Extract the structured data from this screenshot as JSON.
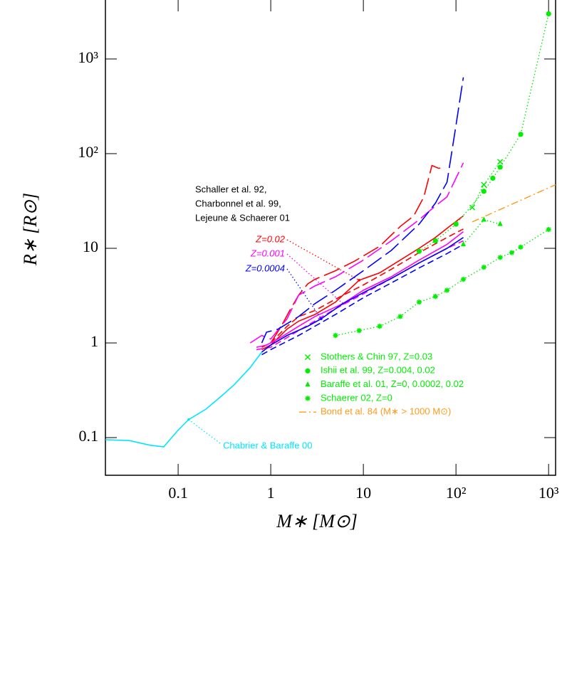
{
  "chart_data": {
    "type": "line",
    "x_label": "M∗ [M⊙]",
    "y_label": "R∗ [R⊙]",
    "log_x": true,
    "log_y": true,
    "xlim": [
      0.0164,
      1190
    ],
    "ylim": [
      0.04,
      4200
    ],
    "xticks": [
      0.1,
      1,
      10,
      {
        "value": 100,
        "label": "10²"
      },
      {
        "value": 1000,
        "label": "10³"
      }
    ],
    "yticks": [
      0.1,
      1,
      10,
      {
        "value": 100,
        "label": "10²"
      },
      {
        "value": 1000,
        "label": "10³"
      }
    ],
    "annotation": [
      "Schaller et al. 92,",
      "Charbonnel et al. 99,",
      "Lejeune & Schaerer 01"
    ],
    "models": [
      {
        "label": "Z=0.02",
        "color": "#ff0000",
        "lines": [
          {
            "dash": "solid",
            "x": [
              0.8,
              1,
              1.5,
              2,
              3,
              5,
              9,
              15,
              25,
              40,
              60,
              85,
              120
            ],
            "values": [
              0.85,
              0.95,
              1.4,
              1.7,
              2.0,
              2.7,
              4.6,
              5.5,
              7.5,
              10,
              13,
              17,
              22
            ]
          },
          {
            "dash": "short",
            "x": [
              0.8,
              1,
              1.5,
              2,
              3,
              5,
              10,
              20,
              40,
              80,
              120
            ],
            "values": [
              0.9,
              1.0,
              1.5,
              1.9,
              2.2,
              2.9,
              4.1,
              6,
              9,
              13,
              16
            ]
          },
          {
            "dash": "long",
            "x": [
              1,
              1.3,
              1.6,
              2,
              2.5,
              3,
              5,
              8,
              15,
              25,
              35,
              45,
              55,
              65,
              75
            ],
            "values": [
              1.0,
              1.5,
              2.2,
              3.2,
              4.2,
              4.7,
              5.8,
              7.3,
              10.5,
              17,
              22,
              35,
              75,
              70,
              72
            ]
          }
        ]
      },
      {
        "label": "Z=0.001",
        "color": "#ff00ff",
        "lines": [
          {
            "dash": "solid",
            "x": [
              0.7,
              0.9,
              1.2,
              2,
              3,
              6,
              10,
              20,
              40,
              80,
              120
            ],
            "values": [
              0.9,
              0.95,
              1.1,
              1.5,
              1.9,
              2.6,
              3.6,
              5,
              7.5,
              11,
              15
            ]
          },
          {
            "dash": "short",
            "x": [
              0.7,
              1,
              2,
              5,
              10,
              20,
              40,
              80,
              120
            ],
            "values": [
              0.85,
              0.9,
              1.35,
              2.3,
              3.3,
              4.8,
              7,
              10,
              12
            ]
          },
          {
            "dash": "long",
            "x": [
              0.6,
              0.8,
              1,
              1.5,
              2,
              3,
              5,
              10,
              20,
              40,
              60,
              80,
              120
            ],
            "values": [
              1.0,
              1.2,
              1.1,
              1.8,
              3.2,
              4.0,
              5,
              7.5,
              12,
              20,
              28,
              35,
              80
            ]
          }
        ]
      },
      {
        "label": "Z=0.0004",
        "color": "#0000ff",
        "lines": [
          {
            "dash": "solid",
            "x": [
              0.8,
              1,
              1.5,
              2.5,
              3.5,
              6,
              10,
              20,
              40,
              80,
              120
            ],
            "values": [
              0.8,
              0.95,
              1.2,
              1.5,
              1.8,
              2.6,
              3.4,
              4.8,
              7,
              10,
              13
            ]
          },
          {
            "dash": "short",
            "x": [
              0.8,
              1,
              2,
              5,
              10,
              20,
              40,
              80,
              120
            ],
            "values": [
              0.75,
              0.85,
              1.2,
              2.0,
              3.0,
              4.3,
              6.2,
              8.8,
              11
            ]
          },
          {
            "dash": "long",
            "x": [
              0.8,
              0.9,
              1.2,
              2,
              3,
              5,
              10,
              20,
              40,
              60,
              80,
              100,
              120
            ],
            "values": [
              1.0,
              1.3,
              1.4,
              1.9,
              2.6,
              3.6,
              5.8,
              9.5,
              18,
              30,
              50,
              200,
              640
            ]
          }
        ]
      },
      {
        "label": "Chabrier & Baraffe 00",
        "color": "#00e5ff",
        "lines": [
          {
            "dash": "solid",
            "x": [
              0.0164,
              0.03,
              0.05,
              0.07,
              0.1,
              0.13,
              0.2,
              0.3,
              0.4,
              0.6,
              0.8
            ],
            "values": [
              0.095,
              0.093,
              0.083,
              0.08,
              0.12,
              0.155,
              0.2,
              0.28,
              0.36,
              0.55,
              0.8
            ]
          }
        ]
      }
    ],
    "series": [
      {
        "name": "Stothers & Chin 97, Z=0.03",
        "color": "#00ee00",
        "marker": "cross",
        "line": "dotted",
        "x": [
          150,
          200,
          300
        ],
        "values": [
          27,
          47,
          82
        ]
      },
      {
        "name": "Ishii et al. 99, Z=0.004, 0.02",
        "color": "#00ee00",
        "marker": "circle",
        "line": "dotted",
        "x": [
          40,
          60,
          100,
          200,
          250,
          300,
          500,
          1000
        ],
        "values": [
          9.3,
          12,
          18,
          40,
          55,
          72,
          160,
          3000
        ]
      },
      {
        "name": "Baraffe et al. 01, Z=0, 0.0002, 0.02",
        "color": "#00ee00",
        "marker": "triangle",
        "line": "dotted",
        "x": [
          120,
          200,
          300
        ],
        "values": [
          11,
          20,
          18
        ]
      },
      {
        "name": "Schaerer 02, Z=0",
        "color": "#00ee00",
        "marker": "star",
        "line": "dotted",
        "x": [
          5,
          9,
          15,
          25,
          40,
          60,
          80,
          120,
          200,
          300,
          400,
          500,
          1000
        ],
        "values": [
          1.2,
          1.35,
          1.5,
          1.9,
          2.7,
          3.1,
          3.6,
          4.7,
          6.3,
          8,
          9,
          10.3,
          15.8
        ]
      },
      {
        "name": "Bond et al. 84 (M∗ > 1000 M⊙)",
        "color": "#ff9a1a",
        "marker": "none",
        "line": "dashdot",
        "x": [
          150,
          1190
        ],
        "values": [
          19,
          47
        ]
      }
    ]
  }
}
